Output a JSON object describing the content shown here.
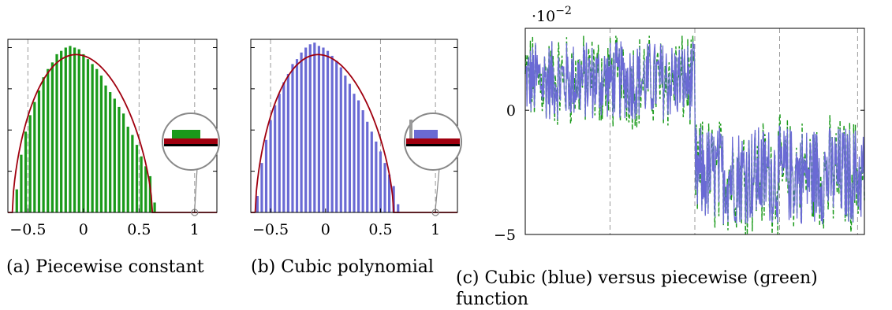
{
  "captions": {
    "a": "(a) Piecewise constant",
    "b": "(b) Cubic polynomial",
    "c": "(c) Cubic (blue) versus piecewise (green) function"
  },
  "colors": {
    "green": "#1a9a1a",
    "blue": "#6a6ad4",
    "curve": "#a0000f",
    "grid": "#9a9a9a",
    "lens_outline": "#888888"
  },
  "chart_data": [
    {
      "type": "bar",
      "panel": "a",
      "series_color": "#1a9a1a",
      "xlim": [
        -0.68,
        1.2
      ],
      "ylim": [
        0,
        1.05
      ],
      "xticks": [
        -0.5,
        0,
        0.5,
        1
      ],
      "xtick_labels": [
        "−0.5",
        "0",
        "0.5",
        "1"
      ],
      "grid_x": [
        -0.5,
        0.5,
        1
      ],
      "bin_centers": [
        -0.6,
        -0.56,
        -0.52,
        -0.48,
        -0.44,
        -0.4,
        -0.36,
        -0.32,
        -0.28,
        -0.24,
        -0.2,
        -0.16,
        -0.12,
        -0.08,
        -0.04,
        0.0,
        0.04,
        0.08,
        0.12,
        0.16,
        0.2,
        0.24,
        0.28,
        0.32,
        0.36,
        0.4,
        0.44,
        0.48,
        0.52,
        0.56,
        0.6,
        0.64
      ],
      "bin_heights": [
        0.14,
        0.35,
        0.49,
        0.59,
        0.67,
        0.74,
        0.82,
        0.87,
        0.91,
        0.96,
        0.98,
        1.0,
        1.01,
        1.0,
        0.99,
        0.96,
        0.93,
        0.9,
        0.87,
        0.83,
        0.77,
        0.73,
        0.69,
        0.64,
        0.6,
        0.52,
        0.47,
        0.41,
        0.34,
        0.28,
        0.22,
        0.06
      ],
      "curve": "semicircle-like envelope from -0.64 to 0.62"
    },
    {
      "type": "bar",
      "panel": "b",
      "series_color": "#6a6ad4",
      "xlim": [
        -0.68,
        1.2
      ],
      "ylim": [
        0,
        1.05
      ],
      "xticks": [
        -0.5,
        0,
        0.5,
        1
      ],
      "xtick_labels": [
        "−0.5",
        "0",
        "0.5",
        "1"
      ],
      "grid_x": [
        -0.5,
        0.5,
        1
      ],
      "bin_centers": [
        -0.62,
        -0.58,
        -0.54,
        -0.5,
        -0.46,
        -0.42,
        -0.38,
        -0.34,
        -0.3,
        -0.26,
        -0.22,
        -0.18,
        -0.14,
        -0.1,
        -0.06,
        -0.02,
        0.02,
        0.06,
        0.1,
        0.14,
        0.18,
        0.22,
        0.26,
        0.3,
        0.34,
        0.38,
        0.42,
        0.46,
        0.5,
        0.54,
        0.58,
        0.62,
        0.66
      ],
      "bin_heights": [
        0.1,
        0.3,
        0.44,
        0.56,
        0.65,
        0.72,
        0.79,
        0.84,
        0.9,
        0.93,
        0.97,
        1.0,
        1.02,
        1.03,
        1.01,
        1.0,
        0.98,
        0.95,
        0.92,
        0.88,
        0.83,
        0.78,
        0.72,
        0.68,
        0.62,
        0.55,
        0.49,
        0.43,
        0.37,
        0.3,
        0.23,
        0.16,
        0.05
      ],
      "curve": "semicircle-like envelope from -0.64 to 0.62"
    },
    {
      "type": "line",
      "panel": "c",
      "scale_label_base": "·10",
      "scale_label_exp": "−2",
      "ylim": [
        -5,
        3.3
      ],
      "yticks": [
        0,
        -5
      ],
      "ytick_labels": [
        "0",
        "−5"
      ],
      "grid_x_fraction": [
        0.25,
        0.5,
        0.75,
        0.98
      ],
      "series": [
        {
          "color": "#1a9a1a",
          "style": "dashed"
        },
        {
          "color": "#6a6ad4",
          "style": "solid"
        }
      ],
      "segments": [
        {
          "x_range": [
            0.0,
            0.5
          ],
          "mean": 1.2,
          "spread": 1.6
        },
        {
          "x_range": [
            0.5,
            1.0
          ],
          "mean": -2.6,
          "spread": 2.0
        }
      ]
    }
  ]
}
